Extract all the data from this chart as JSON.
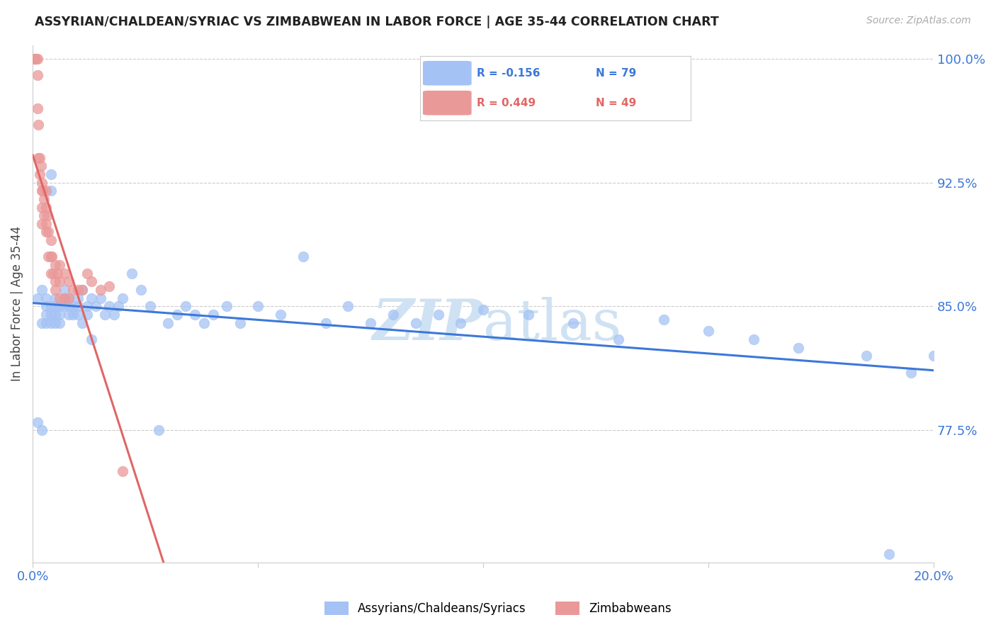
{
  "title": "ASSYRIAN/CHALDEAN/SYRIAC VS ZIMBABWEAN IN LABOR FORCE | AGE 35-44 CORRELATION CHART",
  "source": "Source: ZipAtlas.com",
  "ylabel": "In Labor Force | Age 35-44",
  "xmin": 0.0,
  "xmax": 0.2,
  "ymin": 0.695,
  "ymax": 1.008,
  "yticks": [
    0.775,
    0.85,
    0.925,
    1.0
  ],
  "ytick_labels": [
    "77.5%",
    "85.0%",
    "92.5%",
    "100.0%"
  ],
  "xticks": [
    0.0,
    0.05,
    0.1,
    0.15,
    0.2
  ],
  "xtick_labels": [
    "0.0%",
    "",
    "",
    "",
    "20.0%"
  ],
  "blue_R": -0.156,
  "blue_N": 79,
  "pink_R": 0.449,
  "pink_N": 49,
  "blue_color": "#a4c2f4",
  "pink_color": "#ea9999",
  "blue_line_color": "#3c78d8",
  "pink_line_color": "#e06666",
  "blue_label": "Assyrians/Chaldeans/Syriacs",
  "pink_label": "Zimbabweans",
  "blue_scatter_x": [
    0.001,
    0.001,
    0.002,
    0.002,
    0.002,
    0.003,
    0.003,
    0.003,
    0.003,
    0.004,
    0.004,
    0.004,
    0.004,
    0.004,
    0.005,
    0.005,
    0.005,
    0.005,
    0.006,
    0.006,
    0.006,
    0.007,
    0.007,
    0.007,
    0.008,
    0.008,
    0.008,
    0.009,
    0.009,
    0.01,
    0.01,
    0.01,
    0.011,
    0.011,
    0.012,
    0.012,
    0.013,
    0.013,
    0.014,
    0.015,
    0.016,
    0.017,
    0.018,
    0.019,
    0.02,
    0.022,
    0.024,
    0.026,
    0.028,
    0.03,
    0.032,
    0.034,
    0.036,
    0.038,
    0.04,
    0.043,
    0.046,
    0.05,
    0.055,
    0.06,
    0.065,
    0.07,
    0.075,
    0.08,
    0.085,
    0.09,
    0.095,
    0.1,
    0.11,
    0.12,
    0.13,
    0.14,
    0.15,
    0.16,
    0.17,
    0.185,
    0.19,
    0.195,
    0.2
  ],
  "blue_scatter_y": [
    0.855,
    0.78,
    0.86,
    0.775,
    0.84,
    0.85,
    0.855,
    0.84,
    0.845,
    0.93,
    0.92,
    0.85,
    0.845,
    0.84,
    0.855,
    0.85,
    0.845,
    0.84,
    0.85,
    0.845,
    0.84,
    0.86,
    0.855,
    0.85,
    0.855,
    0.85,
    0.845,
    0.85,
    0.845,
    0.855,
    0.85,
    0.845,
    0.86,
    0.84,
    0.85,
    0.845,
    0.855,
    0.83,
    0.85,
    0.855,
    0.845,
    0.85,
    0.845,
    0.85,
    0.855,
    0.87,
    0.86,
    0.85,
    0.775,
    0.84,
    0.845,
    0.85,
    0.845,
    0.84,
    0.845,
    0.85,
    0.84,
    0.85,
    0.845,
    0.88,
    0.84,
    0.85,
    0.84,
    0.845,
    0.84,
    0.845,
    0.84,
    0.848,
    0.845,
    0.84,
    0.83,
    0.842,
    0.835,
    0.83,
    0.825,
    0.82,
    0.7,
    0.81,
    0.82
  ],
  "pink_scatter_x": [
    0.0005,
    0.0005,
    0.0008,
    0.001,
    0.001,
    0.001,
    0.0012,
    0.0012,
    0.0015,
    0.0015,
    0.0018,
    0.002,
    0.002,
    0.002,
    0.002,
    0.0022,
    0.0025,
    0.0025,
    0.003,
    0.003,
    0.003,
    0.003,
    0.0032,
    0.0035,
    0.0035,
    0.004,
    0.004,
    0.004,
    0.0042,
    0.0045,
    0.005,
    0.005,
    0.005,
    0.0055,
    0.006,
    0.006,
    0.006,
    0.007,
    0.007,
    0.008,
    0.008,
    0.009,
    0.01,
    0.011,
    0.012,
    0.013,
    0.015,
    0.017,
    0.02
  ],
  "pink_scatter_y": [
    1.0,
    1.0,
    1.0,
    1.0,
    0.99,
    0.97,
    0.96,
    0.94,
    0.94,
    0.93,
    0.935,
    0.925,
    0.92,
    0.91,
    0.9,
    0.92,
    0.915,
    0.905,
    0.92,
    0.91,
    0.9,
    0.895,
    0.905,
    0.895,
    0.88,
    0.89,
    0.88,
    0.87,
    0.88,
    0.87,
    0.875,
    0.865,
    0.86,
    0.87,
    0.875,
    0.865,
    0.855,
    0.87,
    0.855,
    0.865,
    0.855,
    0.86,
    0.86,
    0.86,
    0.87,
    0.865,
    0.86,
    0.862,
    0.75
  ],
  "background_color": "#ffffff",
  "grid_color": "#cccccc",
  "title_color": "#222222",
  "tick_label_color": "#3c78d8",
  "watermark_color": "#cfe2f3"
}
